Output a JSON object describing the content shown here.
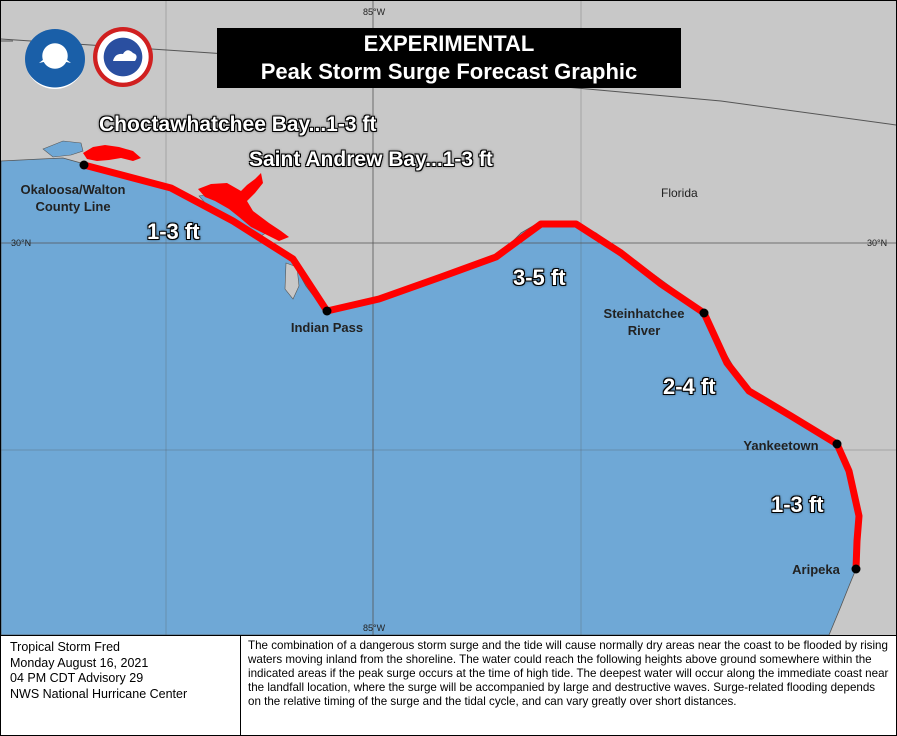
{
  "banner": {
    "line1": "EXPERIMENTAL",
    "line2": "Peak Storm Surge Forecast Graphic"
  },
  "graticule": {
    "lon_top": "85°W",
    "lon_bottom": "85°W",
    "lat_left": "30°N",
    "lat_right": "30°N"
  },
  "state_label": "Florida",
  "logos": [
    {
      "name": "noaa-logo",
      "text": "NOAA"
    },
    {
      "name": "nws-logo",
      "text": "NATIONAL WEATHER SERVICE"
    }
  ],
  "bays": [
    {
      "id": "choctawhatchee",
      "label": "Choctawhatchee Bay...1-3 ft"
    },
    {
      "id": "saint-andrew",
      "label": "Saint Andrew Bay...1-3 ft"
    }
  ],
  "segments": [
    {
      "id": "seg1",
      "label": "1-3 ft"
    },
    {
      "id": "seg2",
      "label": "3-5 ft"
    },
    {
      "id": "seg3",
      "label": "2-4 ft"
    },
    {
      "id": "seg4",
      "label": "1-3 ft"
    }
  ],
  "locations": [
    {
      "id": "okaloosa",
      "line1": "Okaloosa/Walton",
      "line2": "County Line"
    },
    {
      "id": "indian-pass",
      "line1": "Indian Pass",
      "line2": ""
    },
    {
      "id": "steinhatchee",
      "line1": "Steinhatchee",
      "line2": "River"
    },
    {
      "id": "yankeetown",
      "line1": "Yankeetown",
      "line2": ""
    },
    {
      "id": "aripeka",
      "line1": "Aripeka",
      "line2": ""
    }
  ],
  "footer": {
    "storm": "Tropical Storm Fred",
    "date": "Monday August 16, 2021",
    "advisory": "04 PM CDT Advisory 29",
    "center": "NWS National Hurricane Center",
    "description": "The combination of a dangerous storm surge and the tide will cause normally dry areas near the coast to be flooded by rising waters moving inland from the shoreline.  The water could reach the following heights above ground somewhere within the indicated areas if the peak surge occurs at the time of high tide.  The deepest water will occur along the immediate coast near the landfall location, where the surge will be accompanied by large and destructive waves.  Surge-related flooding depends on the relative timing of the surge and the tidal cycle, and can vary greatly over short distances."
  },
  "colors": {
    "water": "#6fa8d6",
    "land": "#c8c8c8",
    "surge": "#ff0000",
    "banner": "#000000"
  }
}
